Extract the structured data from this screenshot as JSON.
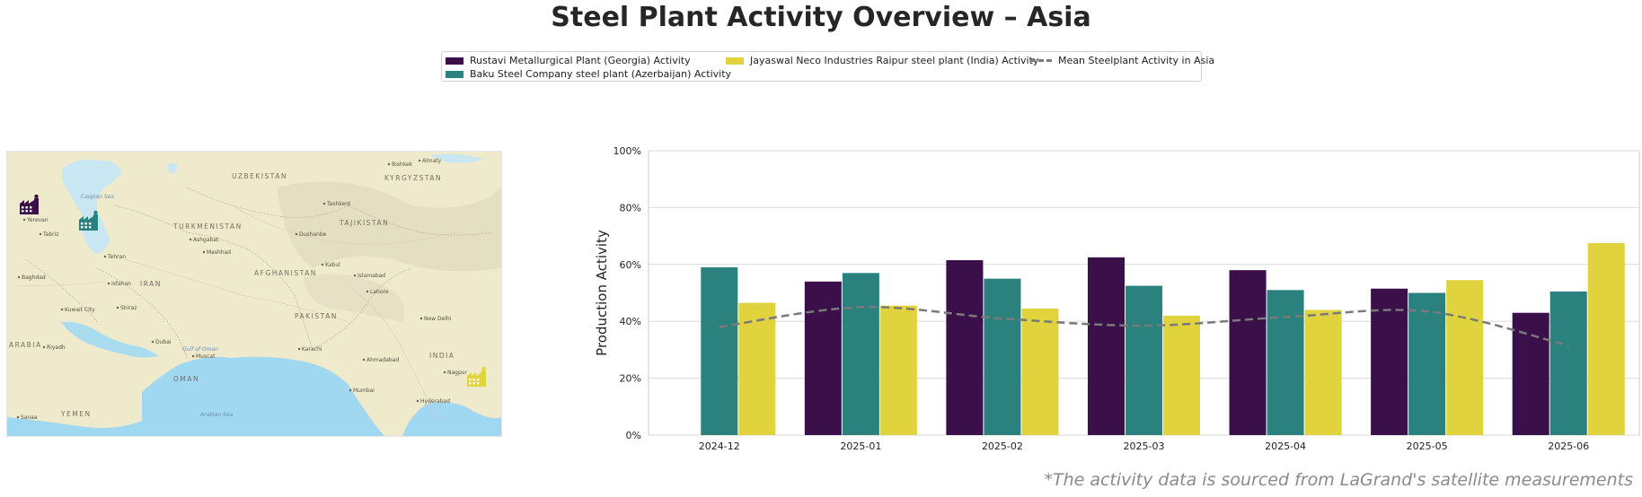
{
  "title": "Steel Plant Activity Overview – Asia",
  "footnote": "*The activity data is sourced from LaGrand's satellite measurements",
  "colors": {
    "rustavi": "#3b0f4a",
    "baku": "#2b817d",
    "jayaswal": "#e0d33d",
    "mean": "#7a7a7a"
  },
  "map": {
    "labels": [
      {
        "text": "UZBEKISTAN",
        "kind": "country"
      },
      {
        "text": "KYRGYZSTAN",
        "kind": "country"
      },
      {
        "text": "TURKMENISTAN",
        "kind": "country"
      },
      {
        "text": "TAJIKISTAN",
        "kind": "country"
      },
      {
        "text": "AFGHANISTAN",
        "kind": "country"
      },
      {
        "text": "IRAN",
        "kind": "country"
      },
      {
        "text": "PAKISTAN",
        "kind": "country"
      },
      {
        "text": "INDIA",
        "kind": "country"
      },
      {
        "text": "OMAN",
        "kind": "country"
      },
      {
        "text": "YEMEN",
        "kind": "country"
      },
      {
        "text": "ARABIA",
        "kind": "country"
      },
      {
        "text": "Caspian Sea",
        "kind": "sea"
      },
      {
        "text": "Arabian Sea",
        "kind": "sea"
      },
      {
        "text": "Gulf of Oman",
        "kind": "sea"
      },
      {
        "text": "Bishkek",
        "kind": "city"
      },
      {
        "text": "Almaty",
        "kind": "city"
      },
      {
        "text": "Tashkent",
        "kind": "city"
      },
      {
        "text": "Ashgabat",
        "kind": "city"
      },
      {
        "text": "Mashhad",
        "kind": "city"
      },
      {
        "text": "Dushanbe",
        "kind": "city"
      },
      {
        "text": "Tehran",
        "kind": "city"
      },
      {
        "text": "Tabriz",
        "kind": "city"
      },
      {
        "text": "Kabul",
        "kind": "city"
      },
      {
        "text": "Islamabad",
        "kind": "city"
      },
      {
        "text": "Lahore",
        "kind": "city"
      },
      {
        "text": "Baghdad",
        "kind": "city"
      },
      {
        "text": "Isfahan",
        "kind": "city"
      },
      {
        "text": "Kuwait City",
        "kind": "city"
      },
      {
        "text": "Shiraz",
        "kind": "city"
      },
      {
        "text": "Karachi",
        "kind": "city"
      },
      {
        "text": "Muscat",
        "kind": "city"
      },
      {
        "text": "Dubai",
        "kind": "city"
      },
      {
        "text": "Riyadh",
        "kind": "city"
      },
      {
        "text": "New Delhi",
        "kind": "city"
      },
      {
        "text": "Ahmadabad",
        "kind": "city"
      },
      {
        "text": "Mumbai",
        "kind": "city"
      },
      {
        "text": "Hyderabad",
        "kind": "city"
      },
      {
        "text": "Nagpur",
        "kind": "city"
      },
      {
        "text": "Sanaa",
        "kind": "city"
      },
      {
        "text": "Yerevan",
        "kind": "city"
      }
    ],
    "markers": [
      {
        "name": "Rustavi Metallurgical Plant (Georgia)",
        "color_key": "rustavi",
        "icon": "factory-icon"
      },
      {
        "name": "Baku Steel Company steel plant (Azerbaijan)",
        "color_key": "baku",
        "icon": "factory-icon"
      },
      {
        "name": "Jayaswal Neco Industries Raipur steel plant (India)",
        "color_key": "jayaswal",
        "icon": "factory-icon"
      }
    ]
  },
  "chart_data": {
    "type": "bar",
    "title": "",
    "xlabel": "",
    "ylabel": "Production Activity",
    "ylim": [
      0,
      100
    ],
    "yticks": [
      "0%",
      "20%",
      "40%",
      "60%",
      "80%",
      "100%"
    ],
    "grid": "horizontal",
    "legend_position": "top-center",
    "categories": [
      "2024-12",
      "2025-01",
      "2025-02",
      "2025-03",
      "2025-04",
      "2025-05",
      "2025-06"
    ],
    "series": [
      {
        "name": "Rustavi Metallurgical Plant (Georgia) Activity",
        "color_key": "rustavi",
        "values": [
          null,
          54,
          61.5,
          62.5,
          58,
          51.5,
          43
        ]
      },
      {
        "name": "Baku Steel Company steel plant (Azerbaijan) Activity",
        "color_key": "baku",
        "values": [
          59,
          57,
          55,
          52.5,
          51,
          50,
          50.5
        ]
      },
      {
        "name": "Jayaswal Neco Industries Raipur steel plant (India) Activity",
        "color_key": "jayaswal",
        "values": [
          46.5,
          45.5,
          44.5,
          42,
          44,
          54.5,
          67.5
        ]
      }
    ],
    "mean_line": {
      "name": "Mean Steelplant Activity in Asia",
      "color_key": "mean",
      "style": "dashed",
      "values": [
        38,
        45,
        41,
        38.5,
        41.5,
        43.5,
        31.5
      ]
    }
  }
}
